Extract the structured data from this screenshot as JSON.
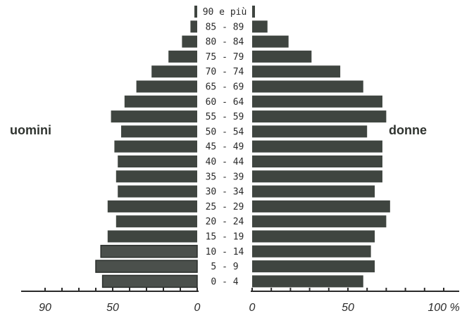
{
  "chart_data": {
    "type": "bar",
    "orientation": "horizontal-population-pyramid",
    "categories": [
      "90 e più",
      "85 - 89",
      "80 - 84",
      "75 - 79",
      "70 - 74",
      "65 - 69",
      "60 - 64",
      "55 - 59",
      "50 - 54",
      "45 - 49",
      "40 - 44",
      "35 - 39",
      "30 - 34",
      "25 - 29",
      "20 - 24",
      "15 - 19",
      "10 - 14",
      "5 - 9",
      "0 - 4"
    ],
    "series": [
      {
        "name": "uomini",
        "values": [
          1,
          4,
          9,
          17,
          27,
          36,
          43,
          51,
          45,
          49,
          47,
          48,
          47,
          53,
          48,
          53,
          57,
          60,
          56
        ]
      },
      {
        "name": "donne",
        "values": [
          1,
          8,
          19,
          31,
          46,
          58,
          68,
          70,
          60,
          68,
          68,
          68,
          64,
          72,
          70,
          64,
          62,
          64,
          58
        ]
      }
    ],
    "left_axis": {
      "ticks": [
        "90",
        "50",
        "0"
      ],
      "range": [
        0,
        90
      ]
    },
    "right_axis": {
      "ticks": [
        "0",
        "50",
        "100 %"
      ],
      "range": [
        0,
        100
      ]
    },
    "colors": {
      "bar": "#3f4540",
      "bar_young_men": "#4b504c",
      "text": "#2a2a2a"
    }
  }
}
